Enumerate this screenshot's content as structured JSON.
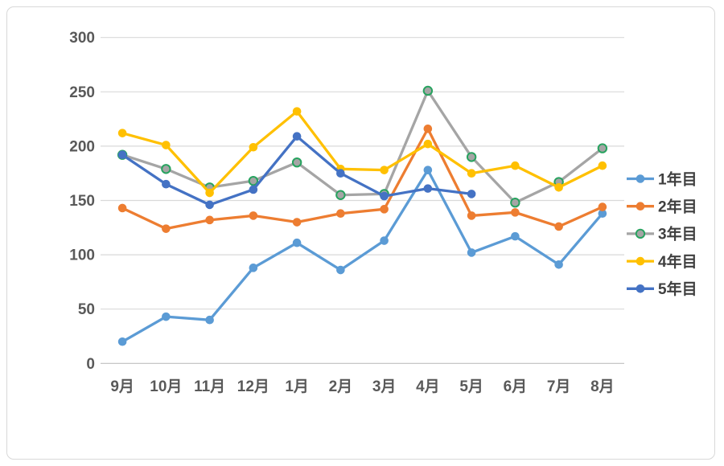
{
  "frame": {
    "background": "#FFFFFF",
    "border_color": "#D8D8D8"
  },
  "axis": {
    "tick_label_color": "#595959",
    "grid_color": "#D9D9D9",
    "axis_line_color": "#BFBFBF"
  },
  "legend": {
    "position": "right",
    "text_color": "#3F3F3F"
  },
  "chart_data": {
    "type": "line",
    "title": "",
    "xlabel": "",
    "ylabel": "",
    "x": [
      "9月",
      "10月",
      "11月",
      "12月",
      "1月",
      "2月",
      "3月",
      "4月",
      "5月",
      "6月",
      "7月",
      "8月"
    ],
    "series": [
      {
        "name": "1年目",
        "color": "#5B9BD5",
        "values": [
          20,
          43,
          40,
          88,
          111,
          86,
          113,
          178,
          102,
          117,
          91,
          138
        ]
      },
      {
        "name": "2年目",
        "color": "#ED7D31",
        "values": [
          143,
          124,
          132,
          136,
          130,
          138,
          142,
          216,
          136,
          139,
          126,
          144
        ]
      },
      {
        "name": "3年目",
        "color": "#A5A5A5",
        "marker_ring": "#27A35F",
        "values": [
          192,
          179,
          162,
          168,
          185,
          155,
          156,
          251,
          190,
          148,
          167,
          198
        ]
      },
      {
        "name": "4年目",
        "color": "#FFC000",
        "values": [
          212,
          201,
          157,
          199,
          232,
          179,
          178,
          202,
          175,
          182,
          162,
          182
        ]
      },
      {
        "name": "5年目",
        "color": "#4472C4",
        "values": [
          192,
          165,
          146,
          160,
          209,
          175,
          154,
          161,
          156,
          null,
          null,
          null
        ]
      }
    ],
    "ylim": [
      0,
      300
    ],
    "yticks": [
      0,
      50,
      100,
      150,
      200,
      250,
      300
    ],
    "grid": true,
    "legend_entries": [
      "1年目",
      "2年目",
      "3年目",
      "4年目",
      "5年目"
    ]
  }
}
